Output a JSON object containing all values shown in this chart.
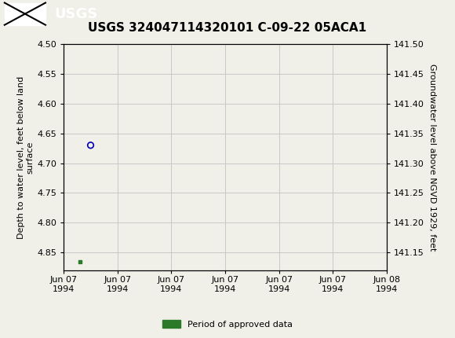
{
  "title": "USGS 324047114320101 C-09-22 05ACA1",
  "header_color": "#1a6b3c",
  "bg_color": "#f0f0e8",
  "plot_bg_color": "#f0f0e8",
  "grid_color": "#c8c8c8",
  "left_ylabel_line1": "Depth to water level, feet below land",
  "left_ylabel_line2": "surface",
  "right_ylabel": "Groundwater level above NGVD 1929, feet",
  "ylim_left": [
    4.5,
    4.88
  ],
  "ylim_right_top": 141.5,
  "ylim_right_bottom": 141.12,
  "yticks_left": [
    4.5,
    4.55,
    4.6,
    4.65,
    4.7,
    4.75,
    4.8,
    4.85
  ],
  "yticks_right": [
    141.5,
    141.45,
    141.4,
    141.35,
    141.3,
    141.25,
    141.2,
    141.15
  ],
  "data_point_x_hours": 2.0,
  "data_point_y": 4.67,
  "data_point_color": "#0000bb",
  "approved_x_hours": 1.2,
  "approved_y": 4.865,
  "approved_color": "#2a7a2a",
  "xmin_hour": 0,
  "xmax_hour": 24,
  "n_xticks": 7,
  "xtick_hours": [
    0,
    4,
    8,
    12,
    16,
    20,
    24
  ],
  "xtick_days": [
    7,
    7,
    7,
    7,
    7,
    7,
    8
  ],
  "legend_label": "Period of approved data",
  "legend_color": "#2a7a2a",
  "title_fontsize": 11,
  "axis_fontsize": 8,
  "tick_fontsize": 8
}
